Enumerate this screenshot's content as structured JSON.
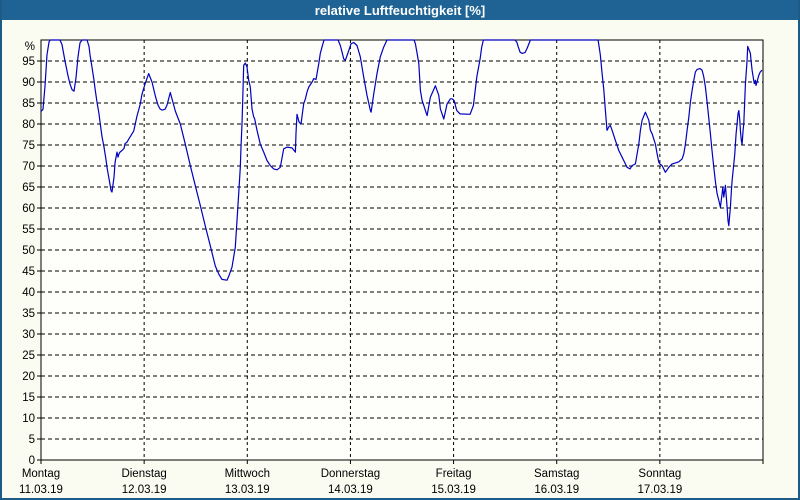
{
  "title": "relative Luftfeuchtigkeit [%]",
  "colors": {
    "titlebar_bg": "#1e6394",
    "frame": "#1c5a87",
    "page_bg": "#fbfcf1",
    "plot_bg": "#fefefa",
    "grid": "#000000",
    "axis": "#000000",
    "text": "#000000",
    "series_line": "#0000c0"
  },
  "chart_data": {
    "type": "line",
    "title": "relative Luftfeuchtigkeit [%]",
    "ylabel": "",
    "xlabel": "",
    "y_unit_label": "%",
    "ylim": [
      0,
      100
    ],
    "y_ticks": [
      0,
      5,
      10,
      15,
      20,
      25,
      30,
      35,
      40,
      45,
      50,
      55,
      60,
      65,
      70,
      75,
      80,
      85,
      90,
      95
    ],
    "grid": "dashed, horizontal every 5%, vertical at day boundaries",
    "legend_position": "none",
    "x_range_days": [
      0,
      7
    ],
    "x_days": [
      {
        "name": "Montag",
        "date": "11.03.19"
      },
      {
        "name": "Dienstag",
        "date": "12.03.19"
      },
      {
        "name": "Mittwoch",
        "date": "13.03.19"
      },
      {
        "name": "Donnerstag",
        "date": "14.03.19"
      },
      {
        "name": "Freitag",
        "date": "15.03.19"
      },
      {
        "name": "Samstag",
        "date": "16.03.19"
      },
      {
        "name": "Sonntag",
        "date": "17.03.19"
      }
    ],
    "series": [
      {
        "name": "relative Luftfeuchtigkeit [%]",
        "color": "#0000c0",
        "points": [
          [
            0.0,
            83
          ],
          [
            0.019,
            83.5
          ],
          [
            0.039,
            89
          ],
          [
            0.058,
            96.5
          ],
          [
            0.078,
            99.5
          ],
          [
            0.087,
            100
          ],
          [
            0.184,
            100
          ],
          [
            0.204,
            98.9
          ],
          [
            0.233,
            95
          ],
          [
            0.262,
            91.5
          ],
          [
            0.281,
            89.5
          ],
          [
            0.301,
            88.2
          ],
          [
            0.32,
            87.8
          ],
          [
            0.339,
            91
          ],
          [
            0.359,
            96
          ],
          [
            0.378,
            99.3
          ],
          [
            0.398,
            100
          ],
          [
            0.446,
            100
          ],
          [
            0.465,
            98.5
          ],
          [
            0.475,
            96.5
          ],
          [
            0.494,
            93.5
          ],
          [
            0.514,
            90.4
          ],
          [
            0.524,
            88.5
          ],
          [
            0.543,
            85.2
          ],
          [
            0.562,
            82.4
          ],
          [
            0.572,
            80.5
          ],
          [
            0.591,
            77
          ],
          [
            0.611,
            74.5
          ],
          [
            0.63,
            71.5
          ],
          [
            0.64,
            69.7
          ],
          [
            0.659,
            67
          ],
          [
            0.679,
            64.2
          ],
          [
            0.688,
            63.8
          ],
          [
            0.708,
            67.3
          ],
          [
            0.718,
            70.9
          ],
          [
            0.737,
            73.3
          ],
          [
            0.747,
            72.1
          ],
          [
            0.756,
            72.9
          ],
          [
            0.766,
            73.3
          ],
          [
            0.785,
            73.7
          ],
          [
            0.805,
            74.2
          ],
          [
            0.814,
            75.3
          ],
          [
            0.834,
            75.7
          ],
          [
            0.853,
            76.5
          ],
          [
            0.899,
            78.3
          ],
          [
            0.931,
            81.9
          ],
          [
            0.96,
            84.5
          ],
          [
            0.979,
            87.1
          ],
          [
            1.008,
            89.5
          ],
          [
            1.044,
            92
          ],
          [
            1.076,
            90
          ],
          [
            1.108,
            86.7
          ],
          [
            1.134,
            84.5
          ],
          [
            1.154,
            83.6
          ],
          [
            1.173,
            83.3
          ],
          [
            1.202,
            83.5
          ],
          [
            1.222,
            84.5
          ],
          [
            1.254,
            87.5
          ],
          [
            1.302,
            83.1
          ],
          [
            1.351,
            80
          ],
          [
            1.399,
            75.2
          ],
          [
            1.448,
            70
          ],
          [
            1.496,
            65.3
          ],
          [
            1.545,
            60.5
          ],
          [
            1.593,
            55.7
          ],
          [
            1.642,
            50.9
          ],
          [
            1.69,
            46.2
          ],
          [
            1.723,
            44.3
          ],
          [
            1.755,
            43
          ],
          [
            1.803,
            42.8
          ],
          [
            1.823,
            43.9
          ],
          [
            1.852,
            45.9
          ],
          [
            1.884,
            50.7
          ],
          [
            1.9,
            57
          ],
          [
            1.917,
            63.4
          ],
          [
            1.932,
            69.7
          ],
          [
            1.939,
            74.5
          ],
          [
            1.949,
            80.1
          ],
          [
            1.956,
            85.6
          ],
          [
            1.965,
            94
          ],
          [
            1.981,
            94.5
          ],
          [
            1.997,
            93.6
          ],
          [
            2.014,
            90.4
          ],
          [
            2.029,
            88.8
          ],
          [
            2.046,
            83.6
          ],
          [
            2.062,
            81.7
          ],
          [
            2.072,
            81.2
          ],
          [
            2.094,
            78.5
          ],
          [
            2.126,
            75.2
          ],
          [
            2.159,
            73.3
          ],
          [
            2.191,
            71.3
          ],
          [
            2.223,
            70.1
          ],
          [
            2.256,
            69.3
          ],
          [
            2.288,
            69.1
          ],
          [
            2.32,
            69.7
          ],
          [
            2.353,
            74.1
          ],
          [
            2.385,
            74.5
          ],
          [
            2.434,
            74.3
          ],
          [
            2.466,
            73.3
          ],
          [
            2.472,
            77.8
          ],
          [
            2.482,
            82.3
          ],
          [
            2.501,
            80.5
          ],
          [
            2.521,
            80
          ],
          [
            2.547,
            84.8
          ],
          [
            2.563,
            86
          ],
          [
            2.579,
            87.6
          ],
          [
            2.596,
            88.8
          ],
          [
            2.628,
            90
          ],
          [
            2.644,
            90.8
          ],
          [
            2.666,
            90.6
          ],
          [
            2.693,
            94.4
          ],
          [
            2.708,
            96.8
          ],
          [
            2.725,
            98.4
          ],
          [
            2.744,
            100
          ],
          [
            2.88,
            100
          ],
          [
            2.902,
            98.7
          ],
          [
            2.919,
            97.1
          ],
          [
            2.935,
            95.5
          ],
          [
            2.951,
            95.2
          ],
          [
            2.984,
            97.5
          ],
          [
            3.006,
            99.1
          ],
          [
            3.032,
            99.4
          ],
          [
            3.064,
            98.7
          ],
          [
            3.096,
            96
          ],
          [
            3.129,
            91.2
          ],
          [
            3.161,
            86.8
          ],
          [
            3.193,
            83.3
          ],
          [
            3.2,
            82.8
          ],
          [
            3.226,
            87.1
          ],
          [
            3.258,
            92
          ],
          [
            3.29,
            96
          ],
          [
            3.323,
            98.3
          ],
          [
            3.355,
            100
          ],
          [
            3.617,
            100
          ],
          [
            3.63,
            99.1
          ],
          [
            3.646,
            96.8
          ],
          [
            3.663,
            94.4
          ],
          [
            3.678,
            88
          ],
          [
            3.695,
            85.6
          ],
          [
            3.711,
            84.4
          ],
          [
            3.727,
            83.2
          ],
          [
            3.743,
            82
          ],
          [
            3.775,
            86.4
          ],
          [
            3.824,
            89.1
          ],
          [
            3.857,
            86.8
          ],
          [
            3.872,
            83.6
          ],
          [
            3.905,
            81.2
          ],
          [
            3.937,
            84.8
          ],
          [
            3.969,
            86
          ],
          [
            3.986,
            86
          ],
          [
            4.005,
            85.6
          ],
          [
            4.031,
            83.2
          ],
          [
            4.063,
            82.4
          ],
          [
            4.16,
            82.3
          ],
          [
            4.192,
            84.4
          ],
          [
            4.225,
            91.2
          ],
          [
            4.257,
            95.5
          ],
          [
            4.273,
            98.3
          ],
          [
            4.289,
            100
          ],
          [
            4.596,
            100
          ],
          [
            4.613,
            99.5
          ],
          [
            4.628,
            98.3
          ],
          [
            4.645,
            97.1
          ],
          [
            4.664,
            96.8
          ],
          [
            4.693,
            97
          ],
          [
            4.713,
            98
          ],
          [
            4.745,
            100
          ],
          [
            5.401,
            100
          ],
          [
            5.423,
            96.5
          ],
          [
            5.44,
            92
          ],
          [
            5.456,
            88.4
          ],
          [
            5.472,
            83.2
          ],
          [
            5.488,
            78.5
          ],
          [
            5.505,
            79.3
          ],
          [
            5.52,
            79.7
          ],
          [
            5.537,
            78.5
          ],
          [
            5.569,
            76.1
          ],
          [
            5.602,
            73.7
          ],
          [
            5.634,
            72.1
          ],
          [
            5.666,
            70.5
          ],
          [
            5.682,
            69.7
          ],
          [
            5.711,
            69.3
          ],
          [
            5.731,
            70.1
          ],
          [
            5.763,
            70.5
          ],
          [
            5.779,
            72.9
          ],
          [
            5.796,
            75.2
          ],
          [
            5.811,
            78.5
          ],
          [
            5.828,
            80.9
          ],
          [
            5.86,
            82.8
          ],
          [
            5.893,
            80.9
          ],
          [
            5.908,
            78.5
          ],
          [
            5.925,
            77.7
          ],
          [
            5.957,
            75.2
          ],
          [
            5.973,
            72.9
          ],
          [
            5.99,
            70.9
          ],
          [
            5.999,
            70.5
          ],
          [
            6.022,
            70.1
          ],
          [
            6.054,
            68.5
          ],
          [
            6.087,
            69.7
          ],
          [
            6.119,
            70.5
          ],
          [
            6.148,
            70.7
          ],
          [
            6.184,
            71
          ],
          [
            6.216,
            71.7
          ],
          [
            6.232,
            72.9
          ],
          [
            6.248,
            75.2
          ],
          [
            6.264,
            78.5
          ],
          [
            6.281,
            81.6
          ],
          [
            6.296,
            85.2
          ],
          [
            6.313,
            88
          ],
          [
            6.329,
            90.4
          ],
          [
            6.345,
            92.4
          ],
          [
            6.361,
            93
          ],
          [
            6.39,
            93.2
          ],
          [
            6.41,
            92.8
          ],
          [
            6.426,
            91.2
          ],
          [
            6.442,
            88.8
          ],
          [
            6.458,
            85.2
          ],
          [
            6.474,
            81.6
          ],
          [
            6.49,
            77.7
          ],
          [
            6.506,
            73.7
          ],
          [
            6.523,
            69.7
          ],
          [
            6.538,
            66.5
          ],
          [
            6.555,
            63.4
          ],
          [
            6.571,
            61.8
          ],
          [
            6.587,
            60.2
          ],
          [
            6.603,
            63.4
          ],
          [
            6.61,
            65
          ],
          [
            6.62,
            62.6
          ],
          [
            6.635,
            65.4
          ],
          [
            6.652,
            60.2
          ],
          [
            6.661,
            57
          ],
          [
            6.668,
            55.8
          ],
          [
            6.684,
            60.2
          ],
          [
            6.694,
            64.2
          ],
          [
            6.7,
            66.5
          ],
          [
            6.717,
            70.5
          ],
          [
            6.727,
            72.9
          ],
          [
            6.732,
            75.2
          ],
          [
            6.739,
            77.7
          ],
          [
            6.749,
            80.1
          ],
          [
            6.758,
            82.4
          ],
          [
            6.765,
            83.2
          ],
          [
            6.775,
            80.9
          ],
          [
            6.781,
            78.5
          ],
          [
            6.79,
            76.1
          ],
          [
            6.797,
            75.2
          ],
          [
            6.807,
            78.5
          ],
          [
            6.814,
            80.1
          ],
          [
            6.829,
            89.5
          ],
          [
            6.846,
            95.2
          ],
          [
            6.852,
            98.5
          ],
          [
            6.878,
            96.8
          ],
          [
            6.884,
            95.2
          ],
          [
            6.894,
            92.8
          ],
          [
            6.91,
            90.4
          ],
          [
            6.916,
            89.6
          ],
          [
            6.926,
            90.4
          ],
          [
            6.932,
            89.2
          ],
          [
            6.942,
            90
          ],
          [
            6.959,
            91.6
          ],
          [
            6.974,
            92.4
          ],
          [
            6.99,
            92.8
          ]
        ]
      }
    ]
  }
}
